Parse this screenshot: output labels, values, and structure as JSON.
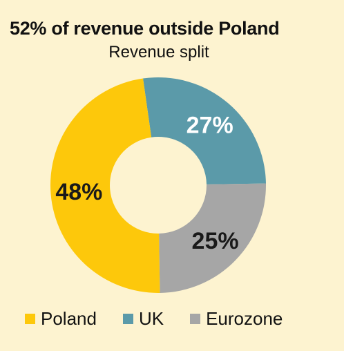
{
  "title": "52% of revenue outside Poland",
  "subtitle": "Revenue split",
  "chart_data": {
    "type": "pie",
    "variant": "donut",
    "title": "52% of revenue outside Poland",
    "subtitle": "Revenue split",
    "categories": [
      "Poland",
      "UK",
      "Eurozone"
    ],
    "values": [
      48,
      27,
      25
    ],
    "labels": [
      "48%",
      "27%",
      "25%"
    ],
    "colors": [
      "#fdc80b",
      "#5b9aa9",
      "#a6a6a6"
    ],
    "label_colors": [
      "#1a1a1a",
      "#ffffff",
      "#1a1a1a"
    ],
    "legend_position": "bottom"
  }
}
